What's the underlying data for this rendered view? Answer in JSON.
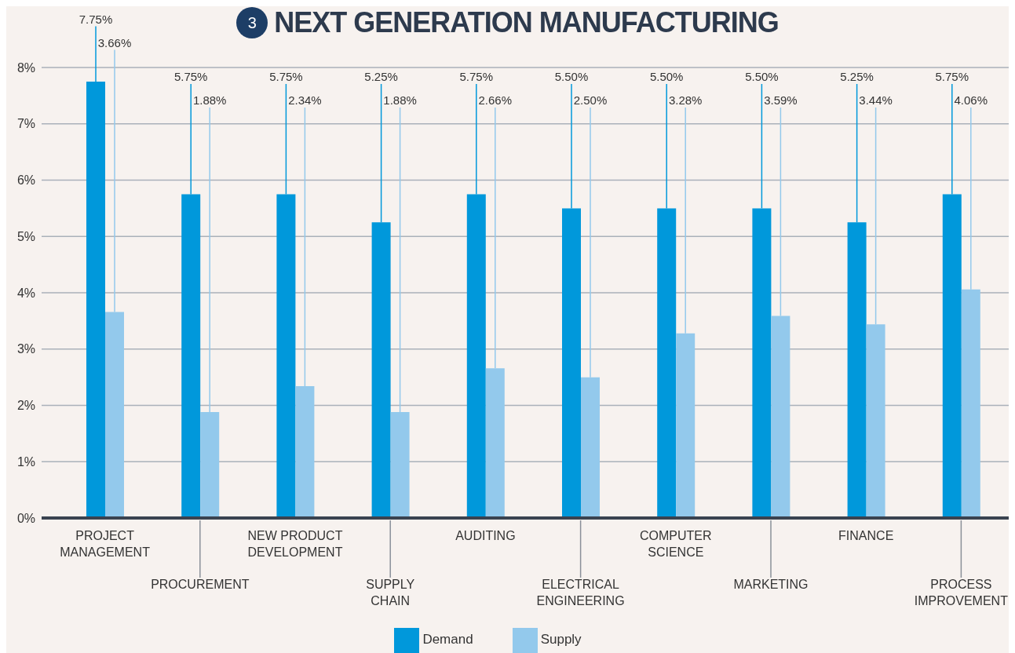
{
  "chart_data": {
    "type": "bar",
    "title": "NEXT GENERATION MANUFACTURING",
    "annotations": [
      "3"
    ],
    "categories": [
      "PROJECT MANAGEMENT",
      "PROCUREMENT",
      "NEW PRODUCT DEVELOPMENT",
      "SUPPLY CHAIN",
      "AUDITING",
      "ELECTRICAL ENGINEERING",
      "COMPUTER SCIENCE",
      "MARKETING",
      "FINANCE",
      "PROCESS IMPROVEMENT"
    ],
    "series": [
      {
        "name": "Demand",
        "color": "#0098db",
        "values": [
          7.75,
          5.75,
          5.75,
          5.25,
          5.75,
          5.5,
          5.5,
          5.5,
          5.25,
          5.75
        ],
        "value_labels": [
          "7.75%",
          "5.75%",
          "5.75%",
          "5.25%",
          "5.75%",
          "5.50%",
          "5.50%",
          "5.50%",
          "5.25%",
          "5.75%"
        ]
      },
      {
        "name": "Supply",
        "color": "#93c9ec",
        "values": [
          3.66,
          1.88,
          2.34,
          1.88,
          2.66,
          2.5,
          3.28,
          3.59,
          3.44,
          4.06
        ],
        "value_labels": [
          "3.66%",
          "1.88%",
          "2.34%",
          "1.88%",
          "2.66%",
          "2.50%",
          "3.28%",
          "3.59%",
          "3.44%",
          "4.06%"
        ]
      }
    ],
    "ylim": [
      0,
      8
    ],
    "yticks": [
      {
        "value": 0,
        "label": "0%"
      },
      {
        "value": 1,
        "label": "1%"
      },
      {
        "value": 2,
        "label": "2%"
      },
      {
        "value": 3,
        "label": "3%"
      },
      {
        "value": 4,
        "label": "4%"
      },
      {
        "value": 5,
        "label": "5%"
      },
      {
        "value": 6,
        "label": "6%"
      },
      {
        "value": 7,
        "label": "7%"
      },
      {
        "value": 8,
        "label": "8%"
      }
    ],
    "grid": "y",
    "legend": "bottom"
  }
}
